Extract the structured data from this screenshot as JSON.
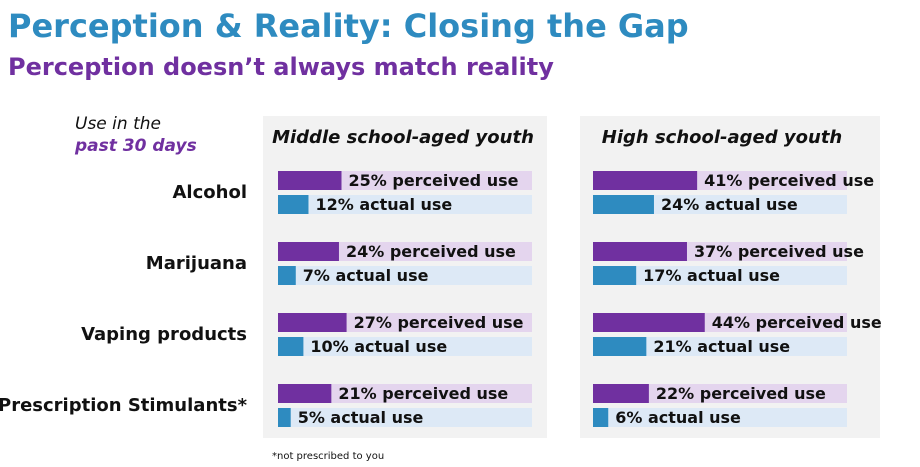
{
  "title": "Perception & Reality: Closing the Gap",
  "subtitle": "Perception doesn’t always match reality",
  "row_header": [
    "Use in the",
    "past 30 days"
  ],
  "footnote": "*not prescribed to you",
  "chart_data": [
    {
      "type": "bar",
      "orientation": "horizontal",
      "title": "Middle school-aged youth",
      "categories": [
        "Alcohol",
        "Marijuana",
        "Vaping products",
        "Prescription Stimulants*"
      ],
      "xlim": [
        0,
        100
      ],
      "series": [
        {
          "color": "#7030a0",
          "track_color": "#e4d5ee",
          "values": [
            25,
            24,
            27,
            21
          ],
          "value_labels": [
            "25% perceived use",
            "24% perceived use",
            "27% perceived use",
            "21% perceived use"
          ]
        },
        {
          "color": "#2e8bc0",
          "track_color": "#dde9f6",
          "values": [
            12,
            7,
            10,
            5
          ],
          "value_labels": [
            "12% actual use",
            "7% actual use",
            "10% actual use",
            "5% actual use"
          ]
        }
      ]
    },
    {
      "type": "bar",
      "orientation": "horizontal",
      "title": "High school-aged youth",
      "xlim": [
        0,
        100
      ],
      "series": [
        {
          "color": "#7030a0",
          "track_color": "#e4d5ee",
          "values": [
            41,
            37,
            44,
            22
          ],
          "value_labels": [
            "41% perceived use",
            "37% perceived use",
            "44% perceived use",
            "22% perceived use"
          ]
        },
        {
          "color": "#2e8bc0",
          "track_color": "#dde9f6",
          "values": [
            24,
            17,
            21,
            6
          ],
          "value_labels": [
            "24% actual use",
            "17% actual use",
            "21% actual use",
            "6% actual use"
          ]
        }
      ]
    }
  ]
}
